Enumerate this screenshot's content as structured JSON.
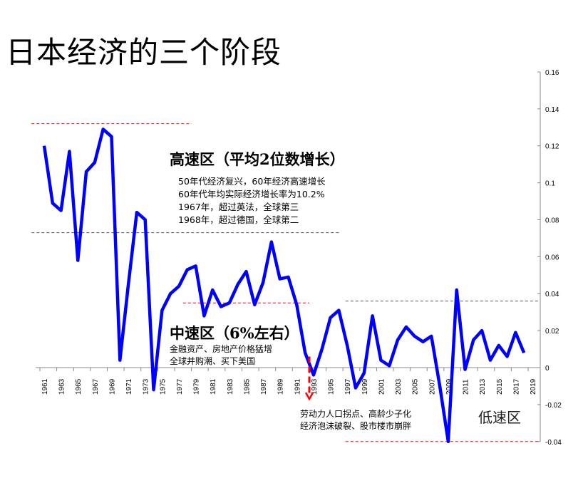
{
  "title": "日本经济的三个阶段",
  "annotations": {
    "high_heading": "高速区（平均2位数增长）",
    "high_notes": [
      "50年代经济复兴，60年经济高速增长",
      "60年代年均实际经济增长率为10.2%",
      "1967年，超过英法，全球第三",
      "1968年，超过德国，全球第二"
    ],
    "mid_heading": "中速区（6%左右）",
    "mid_notes": [
      "金融资产、房地产价格猛增",
      "全球并购潮、买下美国"
    ],
    "low_notes": [
      "劳动力人口拐点、高龄少子化",
      "经济泡沫破裂、股市楼市崩胖"
    ],
    "low_heading": "低速区"
  },
  "chart_data": {
    "type": "line",
    "x": [
      1961,
      1962,
      1963,
      1964,
      1965,
      1966,
      1967,
      1968,
      1969,
      1970,
      1971,
      1972,
      1973,
      1974,
      1975,
      1976,
      1977,
      1978,
      1979,
      1980,
      1981,
      1982,
      1983,
      1984,
      1985,
      1986,
      1987,
      1988,
      1989,
      1990,
      1991,
      1992,
      1993,
      1994,
      1995,
      1996,
      1997,
      1998,
      1999,
      2000,
      2001,
      2002,
      2003,
      2004,
      2005,
      2006,
      2007,
      2008,
      2009,
      2010,
      2011,
      2012,
      2013,
      2014,
      2015,
      2016,
      2017,
      2018
    ],
    "values": [
      0.12,
      0.089,
      0.085,
      0.117,
      0.058,
      0.106,
      0.111,
      0.129,
      0.125,
      0.004,
      0.045,
      0.084,
      0.08,
      -0.012,
      0.031,
      0.04,
      0.044,
      0.053,
      0.055,
      0.028,
      0.042,
      0.033,
      0.035,
      0.045,
      0.052,
      0.034,
      0.046,
      0.068,
      0.048,
      0.049,
      0.034,
      0.008,
      -0.004,
      0.01,
      0.027,
      0.031,
      0.012,
      -0.011,
      -0.003,
      0.028,
      0.004,
      0.001,
      0.015,
      0.022,
      0.017,
      0.014,
      0.017,
      -0.01,
      -0.04,
      0.042,
      -0.001,
      0.015,
      0.02,
      0.004,
      0.012,
      0.006,
      0.019,
      0.008
    ],
    "x_tick_labels": [
      "1961",
      "1963",
      "1965",
      "1967",
      "1969",
      "1971",
      "1973",
      "1975",
      "1977",
      "1979",
      "1981",
      "1983",
      "1985",
      "1987",
      "1989",
      "1991",
      "1993",
      "1995",
      "1997",
      "1999",
      "2001",
      "2003",
      "2005",
      "2007",
      "2009",
      "2011",
      "2013",
      "2015",
      "2017",
      "2019"
    ],
    "y_tick_labels": [
      "0.16",
      "0.14",
      "0.12",
      "0.1",
      "0.08",
      "0.06",
      "0.04",
      "0.02",
      "0",
      "-0.02",
      "-0.04"
    ],
    "ylim": [
      -0.04,
      0.16
    ],
    "xlim": [
      1961,
      2019
    ],
    "y_axis_side": "right",
    "grid": false,
    "line_color": "#0000ff",
    "reference_lines": [
      {
        "value": 0.132,
        "from": 1959.5,
        "to": 1978.5,
        "color": "#ff0000"
      },
      {
        "value": 0.073,
        "from": 1959.5,
        "to": 1996,
        "color": "#555555"
      },
      {
        "value": 0.035,
        "from": 1977.5,
        "to": 1992.5,
        "color": "#ff0000"
      },
      {
        "value": 0.036,
        "from": 1996.8,
        "to": 2019.8,
        "color": "#555555"
      },
      {
        "value": -0.04,
        "from": 1996.8,
        "to": 2019.8,
        "color": "#ff0000"
      }
    ],
    "arrow": {
      "x": 1992.5,
      "from": 0.011,
      "to": -0.017,
      "color": "#ff0000"
    }
  }
}
